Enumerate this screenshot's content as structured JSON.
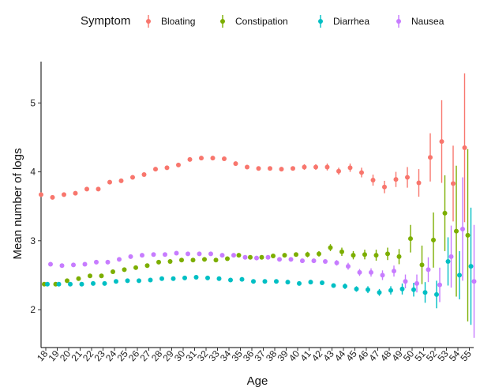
{
  "chart_data": {
    "type": "scatter",
    "error_bars": true,
    "xlabel": "Age",
    "ylabel": "Mean number of logs",
    "legend": {
      "title": "Symptom",
      "position": "top"
    },
    "grid": false,
    "ylim": [
      1.45,
      5.6
    ],
    "yticks": [
      2,
      3,
      4,
      5
    ],
    "x": [
      18,
      19,
      20,
      21,
      22,
      23,
      24,
      25,
      26,
      27,
      28,
      29,
      30,
      31,
      32,
      33,
      34,
      35,
      36,
      37,
      38,
      39,
      40,
      41,
      42,
      43,
      44,
      45,
      46,
      47,
      48,
      49,
      50,
      51,
      52,
      53,
      54,
      55
    ],
    "series": [
      {
        "name": "Bloating",
        "color": "#F8766D",
        "values": [
          3.67,
          3.63,
          3.67,
          3.69,
          3.75,
          3.75,
          3.85,
          3.87,
          3.92,
          3.96,
          4.04,
          4.06,
          4.1,
          4.18,
          4.2,
          4.2,
          4.19,
          4.12,
          4.07,
          4.05,
          4.05,
          4.04,
          4.05,
          4.07,
          4.07,
          4.07,
          4.01,
          4.06,
          3.99,
          3.88,
          3.78,
          3.89,
          3.92,
          3.84,
          4.21,
          4.44,
          3.83,
          4.35
        ],
        "err": [
          0.02,
          0.02,
          0.02,
          0.02,
          0.02,
          0.02,
          0.02,
          0.02,
          0.02,
          0.02,
          0.02,
          0.02,
          0.02,
          0.02,
          0.02,
          0.02,
          0.02,
          0.02,
          0.02,
          0.02,
          0.02,
          0.03,
          0.03,
          0.04,
          0.04,
          0.05,
          0.05,
          0.06,
          0.07,
          0.08,
          0.09,
          0.11,
          0.15,
          0.2,
          0.35,
          0.6,
          0.55,
          1.08
        ]
      },
      {
        "name": "Constipation",
        "color": "#7CAE00",
        "values": [
          2.37,
          2.37,
          2.42,
          2.45,
          2.49,
          2.49,
          2.55,
          2.58,
          2.61,
          2.64,
          2.69,
          2.7,
          2.72,
          2.72,
          2.73,
          2.72,
          2.74,
          2.79,
          2.76,
          2.76,
          2.78,
          2.79,
          2.8,
          2.8,
          2.81,
          2.9,
          2.84,
          2.79,
          2.8,
          2.79,
          2.81,
          2.77,
          3.03,
          2.65,
          3.01,
          3.4,
          3.14,
          3.08
        ],
        "err": [
          0.02,
          0.02,
          0.02,
          0.02,
          0.02,
          0.02,
          0.02,
          0.02,
          0.02,
          0.02,
          0.02,
          0.02,
          0.02,
          0.02,
          0.02,
          0.02,
          0.02,
          0.02,
          0.02,
          0.02,
          0.03,
          0.03,
          0.03,
          0.04,
          0.04,
          0.05,
          0.06,
          0.06,
          0.07,
          0.08,
          0.09,
          0.11,
          0.2,
          0.28,
          0.4,
          0.55,
          0.95,
          1.25
        ]
      },
      {
        "name": "Diarrhea",
        "color": "#00BFC4",
        "values": [
          2.37,
          2.37,
          2.37,
          2.37,
          2.38,
          2.38,
          2.41,
          2.42,
          2.42,
          2.43,
          2.45,
          2.45,
          2.46,
          2.47,
          2.46,
          2.45,
          2.43,
          2.44,
          2.41,
          2.41,
          2.41,
          2.4,
          2.38,
          2.4,
          2.39,
          2.35,
          2.34,
          2.3,
          2.29,
          2.25,
          2.28,
          2.3,
          2.29,
          2.25,
          2.22,
          2.7,
          2.5,
          2.63
        ],
        "err": [
          0.01,
          0.01,
          0.01,
          0.01,
          0.01,
          0.01,
          0.01,
          0.01,
          0.01,
          0.01,
          0.01,
          0.01,
          0.01,
          0.01,
          0.01,
          0.01,
          0.01,
          0.01,
          0.02,
          0.02,
          0.02,
          0.02,
          0.02,
          0.03,
          0.03,
          0.03,
          0.04,
          0.04,
          0.05,
          0.05,
          0.06,
          0.08,
          0.1,
          0.15,
          0.2,
          0.35,
          0.35,
          0.85
        ]
      },
      {
        "name": "Nausea",
        "color": "#C77CFF",
        "values": [
          2.66,
          2.64,
          2.65,
          2.66,
          2.69,
          2.69,
          2.73,
          2.77,
          2.79,
          2.8,
          2.8,
          2.82,
          2.81,
          2.81,
          2.81,
          2.79,
          2.79,
          2.76,
          2.75,
          2.76,
          2.73,
          2.73,
          2.71,
          2.71,
          2.7,
          2.68,
          2.63,
          2.54,
          2.54,
          2.5,
          2.56,
          2.41,
          2.38,
          2.58,
          2.36,
          2.77,
          3.17,
          2.41
        ],
        "err": [
          0.02,
          0.02,
          0.02,
          0.02,
          0.02,
          0.02,
          0.02,
          0.02,
          0.02,
          0.02,
          0.02,
          0.02,
          0.02,
          0.02,
          0.02,
          0.02,
          0.02,
          0.02,
          0.02,
          0.02,
          0.02,
          0.03,
          0.03,
          0.03,
          0.03,
          0.04,
          0.05,
          0.05,
          0.06,
          0.07,
          0.08,
          0.1,
          0.13,
          0.18,
          0.25,
          0.45,
          0.75,
          0.82
        ]
      }
    ]
  }
}
